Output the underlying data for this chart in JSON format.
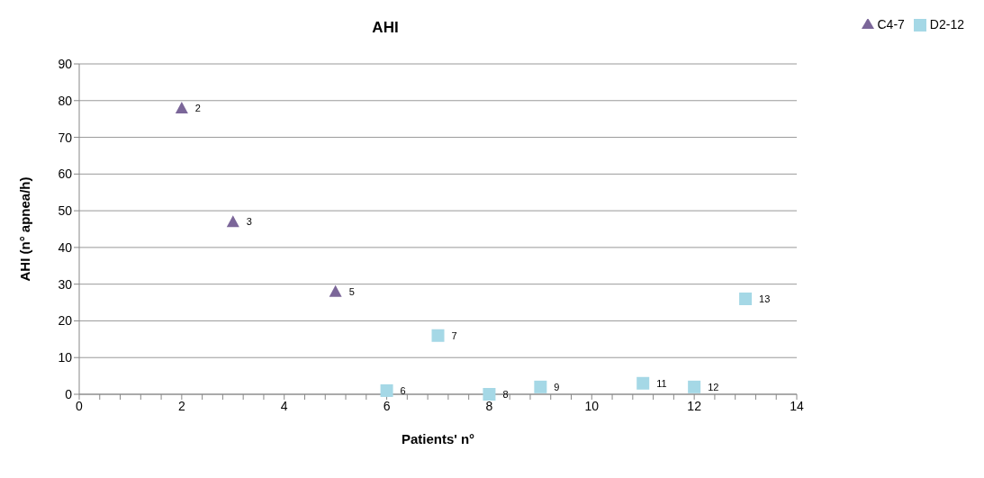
{
  "chart_data": {
    "type": "scatter",
    "title": "AHI",
    "xlabel": "Patients' n°",
    "ylabel": "AHI (n° apnea/h)",
    "xlim": [
      0,
      14
    ],
    "ylim": [
      0,
      90
    ],
    "xticks": [
      0,
      {
        "value": 0.4,
        "label": null
      },
      {
        "value": 0.8,
        "label": null
      },
      {
        "value": 1.2,
        "label": null
      },
      {
        "value": 1.6,
        "label": null
      },
      2,
      {
        "value": 2.4,
        "label": null
      },
      {
        "value": 2.8,
        "label": null
      },
      {
        "value": 3.2,
        "label": null
      },
      {
        "value": 3.6,
        "label": null
      },
      4,
      {
        "value": 4.4,
        "label": null
      },
      {
        "value": 4.8,
        "label": null
      },
      {
        "value": 5.2,
        "label": null
      },
      {
        "value": 5.6,
        "label": null
      },
      6,
      {
        "value": 6.4,
        "label": null
      },
      {
        "value": 6.8,
        "label": null
      },
      {
        "value": 7.2,
        "label": null
      },
      {
        "value": 7.6,
        "label": null
      },
      8,
      {
        "value": 8.4,
        "label": null
      },
      {
        "value": 8.8,
        "label": null
      },
      {
        "value": 9.2,
        "label": null
      },
      {
        "value": 9.6,
        "label": null
      },
      10,
      {
        "value": 10.4,
        "label": null
      },
      {
        "value": 10.8,
        "label": null
      },
      {
        "value": 11.2,
        "label": null
      },
      {
        "value": 11.6,
        "label": null
      },
      12,
      {
        "value": 12.4,
        "label": null
      },
      {
        "value": 12.8,
        "label": null
      },
      {
        "value": 13.2,
        "label": null
      },
      {
        "value": 13.6,
        "label": null
      },
      14
    ],
    "yticks": [
      0,
      10,
      20,
      30,
      40,
      50,
      60,
      70,
      80,
      90
    ],
    "grid": "y",
    "legend": "top right",
    "series": [
      {
        "name": "C4-7",
        "color": "#7b6699",
        "marker": "triangle",
        "x": [
          2,
          3,
          5
        ],
        "values": [
          78,
          47,
          28
        ]
      },
      {
        "name": "D2-12",
        "color": "#a5d8e6",
        "marker": "square",
        "x": [
          6,
          7,
          8,
          9,
          11,
          12,
          13
        ],
        "values": [
          1,
          16,
          0,
          2,
          3,
          2,
          26
        ]
      }
    ],
    "annotations": [
      {
        "text": "2",
        "x": 2,
        "y": 78
      },
      {
        "text": "3",
        "x": 3,
        "y": 47
      },
      {
        "text": "5",
        "x": 5,
        "y": 28
      },
      {
        "text": "6",
        "x": 6,
        "y": 1
      },
      {
        "text": "7",
        "x": 7,
        "y": 16
      },
      {
        "text": "8",
        "x": 8,
        "y": 0
      },
      {
        "text": "9",
        "x": 9,
        "y": 2
      },
      {
        "text": "11",
        "x": 11,
        "y": 3
      },
      {
        "text": "12",
        "x": 12,
        "y": 2
      },
      {
        "text": "13",
        "x": 13,
        "y": 26
      }
    ]
  }
}
